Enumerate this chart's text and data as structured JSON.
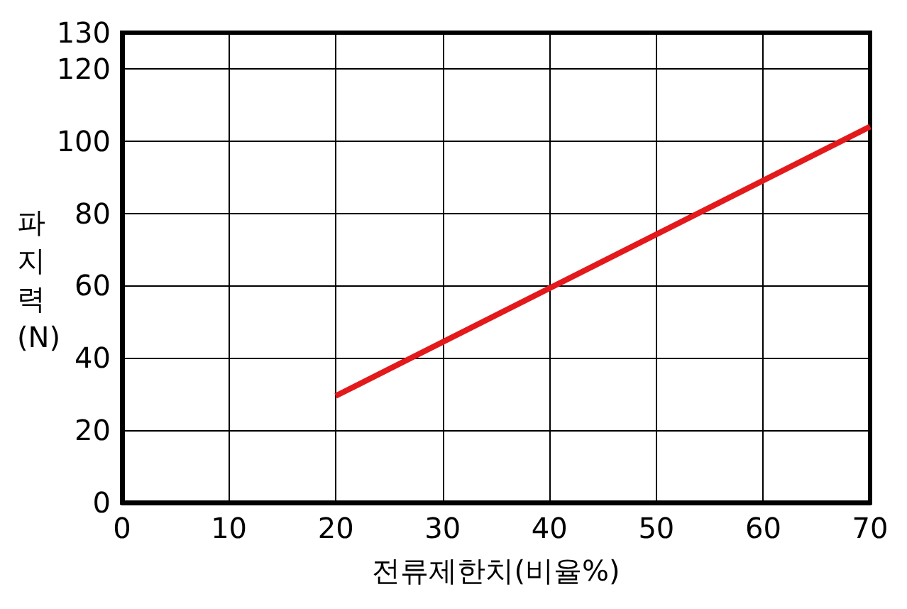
{
  "chart_data": {
    "type": "line",
    "xlabel": "전류제한치(비율%)",
    "ylabel": "파지력(N)",
    "x": [
      20,
      70
    ],
    "series": [
      {
        "color": "#e3191b",
        "values": [
          29.5,
          104
        ]
      }
    ],
    "xlim": [
      0,
      70
    ],
    "xticks": [
      0,
      10,
      20,
      30,
      40,
      50,
      60,
      70
    ],
    "ylim": [
      0,
      130
    ],
    "yticks": [
      0,
      20,
      40,
      60,
      80,
      100,
      120,
      130
    ],
    "grid": true,
    "marker": "none",
    "line_style": "solid"
  }
}
